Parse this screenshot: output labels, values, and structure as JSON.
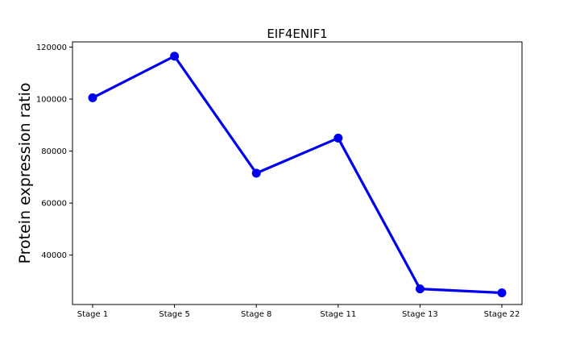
{
  "chart_data": {
    "type": "line",
    "title": "EIF4ENIF1",
    "xlabel": "",
    "ylabel": "Protein expression ratio",
    "categories": [
      "Stage 1",
      "Stage 5",
      "Stage 8",
      "Stage 11",
      "Stage 13",
      "Stage 22"
    ],
    "series": [
      {
        "values": [
          100500,
          116500,
          71500,
          85000,
          27000,
          25500
        ]
      }
    ],
    "yticks": [
      40000,
      60000,
      80000,
      100000,
      120000
    ],
    "ytick_labels": [
      "40000",
      "60000",
      "80000",
      "100000",
      "120000"
    ],
    "ylim": [
      21000,
      122000
    ],
    "grid": false,
    "colors": {
      "line": "#0000ee",
      "marker": "#0000ee",
      "axis": "#000000"
    }
  }
}
